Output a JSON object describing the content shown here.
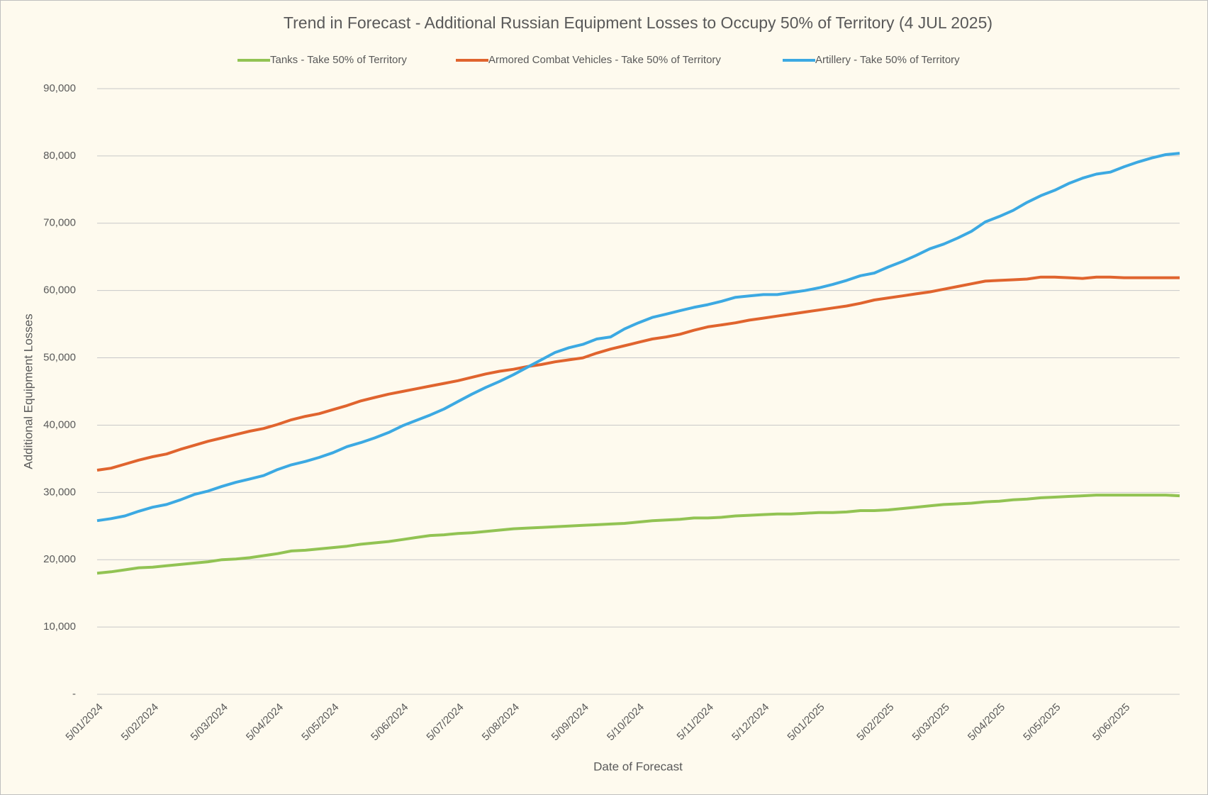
{
  "chart_data": {
    "type": "line",
    "title": "Trend in Forecast - Additional Russian Equipment Losses to Occupy 50% of Territory (4 JUL 2025)",
    "x_label": "Date of Forecast",
    "y_label": "Additional Equipment Losses",
    "categories": [
      "5/01/2024",
      null,
      null,
      null,
      "5/02/2024",
      null,
      null,
      null,
      null,
      "5/03/2024",
      null,
      null,
      null,
      "5/04/2024",
      null,
      null,
      null,
      "5/05/2024",
      null,
      null,
      null,
      null,
      "5/06/2024",
      null,
      null,
      null,
      "5/07/2024",
      null,
      null,
      null,
      "5/08/2024",
      null,
      null,
      null,
      null,
      "5/09/2024",
      null,
      null,
      null,
      "5/10/2024",
      null,
      null,
      null,
      null,
      "5/11/2024",
      null,
      null,
      null,
      "5/12/2024",
      null,
      null,
      null,
      "5/01/2025",
      null,
      null,
      null,
      null,
      "5/02/2025",
      null,
      null,
      null,
      "5/03/2025",
      null,
      null,
      null,
      "5/04/2025",
      null,
      null,
      null,
      "5/05/2025",
      null,
      null,
      null,
      null,
      "5/06/2025",
      null,
      null,
      null,
      null
    ],
    "series": [
      {
        "name": "Tanks - Take 50% of Territory",
        "color": "#92c353",
        "values": [
          18000,
          18200,
          18500,
          18800,
          18900,
          19100,
          19300,
          19500,
          19700,
          20000,
          20100,
          20300,
          20600,
          20900,
          21300,
          21400,
          21600,
          21800,
          22000,
          22300,
          22500,
          22700,
          23000,
          23300,
          23600,
          23700,
          23900,
          24000,
          24200,
          24400,
          24600,
          24700,
          24800,
          24900,
          25000,
          25100,
          25200,
          25300,
          25400,
          25600,
          25800,
          25900,
          26000,
          26200,
          26200,
          26300,
          26500,
          26600,
          26700,
          26800,
          26800,
          26900,
          27000,
          27000,
          27100,
          27300,
          27300,
          27400,
          27600,
          27800,
          28000,
          28200,
          28300,
          28400,
          28600,
          28700,
          28900,
          29000,
          29200,
          29300,
          29400,
          29500,
          29600,
          29600,
          29600,
          29600,
          29600,
          29600,
          29500
        ]
      },
      {
        "name": "Armored Combat Vehicles - Take 50% of Territory",
        "color": "#e0642e",
        "values": [
          33300,
          33600,
          34200,
          34800,
          35300,
          35700,
          36400,
          37000,
          37600,
          38100,
          38600,
          39100,
          39500,
          40100,
          40800,
          41300,
          41700,
          42300,
          42900,
          43600,
          44100,
          44600,
          45000,
          45400,
          45800,
          46200,
          46600,
          47100,
          47600,
          48000,
          48300,
          48700,
          49000,
          49400,
          49700,
          50000,
          50700,
          51300,
          51800,
          52300,
          52800,
          53100,
          53500,
          54100,
          54600,
          54900,
          55200,
          55600,
          55900,
          56200,
          56500,
          56800,
          57100,
          57400,
          57700,
          58100,
          58600,
          58900,
          59200,
          59500,
          59800,
          60200,
          60600,
          61000,
          61400,
          61500,
          61600,
          61700,
          62000,
          62000,
          61900,
          61800,
          62000,
          62000,
          61900,
          61900,
          61900,
          61900,
          61900
        ]
      },
      {
        "name": "Artillery - Take 50% of Territory",
        "color": "#3ca9e2",
        "values": [
          25800,
          26100,
          26500,
          27200,
          27800,
          28200,
          28900,
          29700,
          30200,
          30900,
          31500,
          32000,
          32500,
          33400,
          34100,
          34600,
          35200,
          35900,
          36800,
          37400,
          38100,
          38900,
          39900,
          40700,
          41500,
          42400,
          43500,
          44600,
          45600,
          46500,
          47500,
          48600,
          49700,
          50800,
          51500,
          52000,
          52800,
          53100,
          54300,
          55200,
          56000,
          56500,
          57000,
          57500,
          57900,
          58400,
          59000,
          59200,
          59400,
          59400,
          59700,
          60000,
          60400,
          60900,
          61500,
          62200,
          62600,
          63500,
          64300,
          65200,
          66200,
          66900,
          67800,
          68800,
          70200,
          71000,
          71900,
          73100,
          74100,
          74900,
          75900,
          76700,
          77300,
          77600,
          78400,
          79100,
          79700,
          80200,
          80400
        ]
      }
    ],
    "ylim": [
      0,
      90000
    ],
    "yticks": [
      {
        "value": 0,
        "label": "-"
      },
      {
        "value": 10000,
        "label": "10,000"
      },
      {
        "value": 20000,
        "label": "20,000"
      },
      {
        "value": 30000,
        "label": "30,000"
      },
      {
        "value": 40000,
        "label": "40,000"
      },
      {
        "value": 50000,
        "label": "50,000"
      },
      {
        "value": 60000,
        "label": "60,000"
      },
      {
        "value": 70000,
        "label": "70,000"
      },
      {
        "value": 80000,
        "label": "80,000"
      },
      {
        "value": 90000,
        "label": "90,000"
      }
    ],
    "grid": true,
    "legend": "top"
  }
}
